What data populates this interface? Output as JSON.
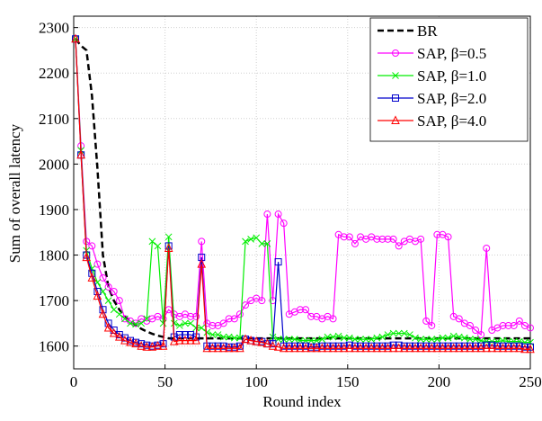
{
  "chart_data": {
    "type": "line",
    "xlabel": "Round index",
    "ylabel": "Sum of overall latency",
    "xlim": [
      0,
      250
    ],
    "ylim": [
      1550,
      2325
    ],
    "xticks": [
      0,
      50,
      100,
      150,
      200,
      250
    ],
    "yticks": [
      1600,
      1700,
      1800,
      1900,
      2000,
      2100,
      2200,
      2300
    ],
    "grid": true,
    "legend": "upper right",
    "x": [
      1,
      4,
      7,
      10,
      13,
      16,
      19,
      22,
      25,
      28,
      31,
      34,
      37,
      40,
      43,
      46,
      49,
      52,
      55,
      58,
      61,
      64,
      67,
      70,
      73,
      76,
      79,
      82,
      85,
      88,
      91,
      94,
      97,
      100,
      103,
      106,
      109,
      112,
      115,
      118,
      121,
      124,
      127,
      130,
      133,
      136,
      139,
      142,
      145,
      148,
      151,
      154,
      157,
      160,
      163,
      166,
      169,
      172,
      175,
      178,
      181,
      184,
      187,
      190,
      193,
      196,
      199,
      202,
      205,
      208,
      211,
      214,
      217,
      220,
      223,
      226,
      229,
      232,
      235,
      238,
      241,
      244,
      247,
      250
    ],
    "series": [
      {
        "name": "BR",
        "color": "#000000",
        "linestyle": "dashed",
        "values": [
          2275,
          2260,
          2250,
          2150,
          1990,
          1800,
          1730,
          1700,
          1680,
          1665,
          1655,
          1645,
          1638,
          1632,
          1627,
          1623,
          1620,
          1617,
          1617,
          1617,
          1617,
          1617,
          1617,
          1617,
          1617,
          1617,
          1617,
          1617,
          1617,
          1617,
          1617,
          1617,
          1617,
          1617,
          1617,
          1617,
          1617,
          1617,
          1617,
          1617,
          1617,
          1617,
          1617,
          1617,
          1617,
          1617,
          1617,
          1617,
          1617,
          1617,
          1617,
          1617,
          1617,
          1617,
          1617,
          1617,
          1617,
          1617,
          1617,
          1617,
          1617,
          1617,
          1617,
          1617,
          1617,
          1617,
          1617,
          1617,
          1617,
          1617,
          1617,
          1617,
          1617,
          1617,
          1617,
          1617,
          1617,
          1617,
          1617,
          1617,
          1617,
          1617,
          1617,
          1617
        ]
      },
      {
        "name": "SAP, β=0.5",
        "color": "#ff00ff",
        "marker": "circle",
        "values": [
          2275,
          2040,
          1830,
          1820,
          1780,
          1750,
          1730,
          1720,
          1700,
          1660,
          1655,
          1650,
          1660,
          1655,
          1660,
          1665,
          1660,
          1680,
          1670,
          1665,
          1670,
          1665,
          1665,
          1830,
          1650,
          1645,
          1645,
          1650,
          1660,
          1660,
          1670,
          1690,
          1700,
          1705,
          1700,
          1890,
          1700,
          1890,
          1870,
          1670,
          1675,
          1680,
          1680,
          1665,
          1665,
          1660,
          1665,
          1660,
          1845,
          1840,
          1840,
          1825,
          1840,
          1835,
          1840,
          1835,
          1835,
          1835,
          1835,
          1820,
          1830,
          1835,
          1830,
          1835,
          1655,
          1645,
          1845,
          1845,
          1840,
          1665,
          1660,
          1650,
          1645,
          1635,
          1625,
          1815,
          1635,
          1640,
          1645,
          1645,
          1645,
          1655,
          1645,
          1640
        ]
      },
      {
        "name": "SAP, β=1.0",
        "color": "#00ee00",
        "marker": "x",
        "values": [
          2275,
          2030,
          1810,
          1770,
          1740,
          1720,
          1700,
          1680,
          1670,
          1660,
          1650,
          1648,
          1650,
          1660,
          1830,
          1820,
          1650,
          1840,
          1650,
          1645,
          1650,
          1650,
          1640,
          1640,
          1630,
          1625,
          1625,
          1620,
          1620,
          1618,
          1618,
          1830,
          1835,
          1838,
          1825,
          1825,
          1620,
          1615,
          1615,
          1615,
          1615,
          1612,
          1612,
          1612,
          1612,
          1615,
          1620,
          1620,
          1622,
          1618,
          1618,
          1615,
          1615,
          1615,
          1615,
          1618,
          1620,
          1625,
          1628,
          1628,
          1628,
          1625,
          1618,
          1615,
          1615,
          1615,
          1615,
          1618,
          1618,
          1622,
          1620,
          1618,
          1615,
          1615,
          1612,
          1610,
          1610,
          1610,
          1612,
          1610,
          1610,
          1610,
          1608,
          1608
        ]
      },
      {
        "name": "SAP, β=2.0",
        "color": "#0000cc",
        "marker": "square",
        "values": [
          2275,
          2020,
          1800,
          1760,
          1720,
          1680,
          1650,
          1635,
          1625,
          1618,
          1612,
          1608,
          1605,
          1602,
          1600,
          1602,
          1605,
          1820,
          1620,
          1625,
          1625,
          1625,
          1620,
          1795,
          1600,
          1600,
          1600,
          1600,
          1598,
          1598,
          1600,
          1615,
          1612,
          1610,
          1610,
          1605,
          1605,
          1785,
          1600,
          1600,
          1600,
          1600,
          1600,
          1598,
          1598,
          1600,
          1600,
          1600,
          1600,
          1600,
          1602,
          1600,
          1600,
          1600,
          1600,
          1600,
          1600,
          1600,
          1602,
          1602,
          1600,
          1600,
          1600,
          1600,
          1600,
          1600,
          1600,
          1600,
          1600,
          1600,
          1600,
          1600,
          1600,
          1600,
          1600,
          1602,
          1602,
          1600,
          1600,
          1600,
          1600,
          1600,
          1598,
          1598
        ]
      },
      {
        "name": "SAP, β=4.0",
        "color": "#ff0000",
        "marker": "triangle",
        "values": [
          2275,
          2020,
          1795,
          1750,
          1710,
          1670,
          1640,
          1628,
          1620,
          1612,
          1608,
          1605,
          1600,
          1598,
          1598,
          1600,
          1600,
          1815,
          1610,
          1612,
          1612,
          1612,
          1612,
          1780,
          1595,
          1595,
          1595,
          1595,
          1595,
          1595,
          1595,
          1615,
          1612,
          1610,
          1608,
          1605,
          1600,
          1598,
          1595,
          1595,
          1595,
          1595,
          1595,
          1595,
          1595,
          1595,
          1595,
          1595,
          1595,
          1595,
          1595,
          1595,
          1595,
          1595,
          1595,
          1595,
          1595,
          1595,
          1595,
          1595,
          1595,
          1595,
          1595,
          1595,
          1595,
          1595,
          1595,
          1595,
          1595,
          1595,
          1595,
          1595,
          1595,
          1595,
          1595,
          1595,
          1595,
          1595,
          1595,
          1595,
          1595,
          1595,
          1593,
          1593
        ]
      }
    ]
  }
}
